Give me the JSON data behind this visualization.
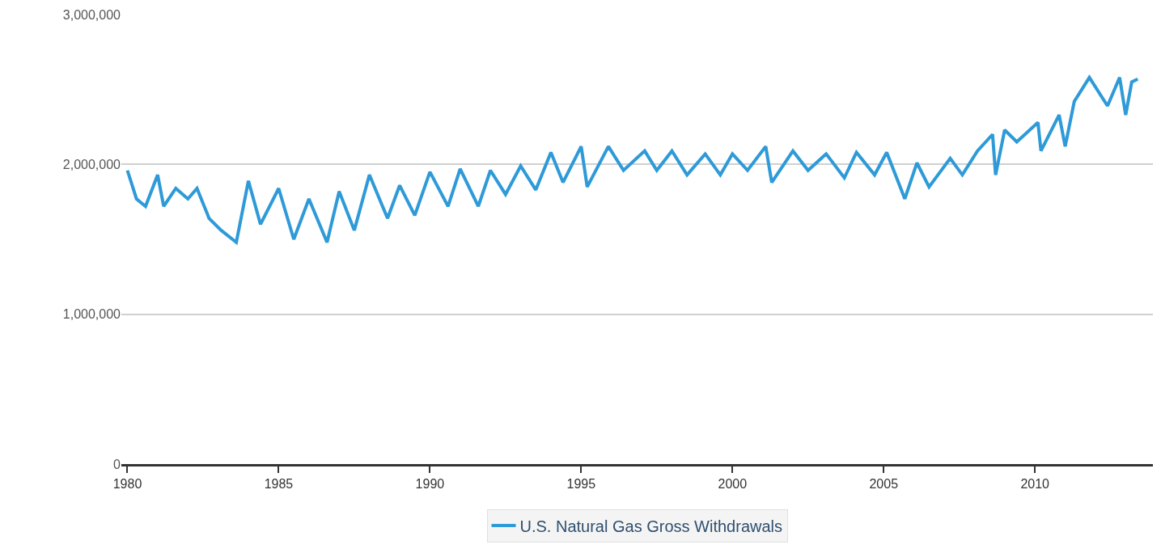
{
  "chart_data": {
    "type": "line",
    "xlim": [
      1979.8,
      2013.9
    ],
    "xticks": [
      1980,
      1985,
      1990,
      1995,
      2000,
      2005,
      2010
    ],
    "ylim": [
      0,
      3000000
    ],
    "yticks": [
      {
        "value": 0,
        "label": "0"
      },
      {
        "value": 1000000,
        "label": "1,000,000"
      },
      {
        "value": 2000000,
        "label": "2,000,000"
      },
      {
        "value": 3000000,
        "label": "3,000,000"
      }
    ],
    "grid": "y",
    "legend": "bottom",
    "marker": "none",
    "line_style": "solid",
    "series": [
      {
        "name": "U.S. Natural Gas Gross Withdrawals",
        "color": "#2e9ad8",
        "x": [
          1980.0,
          1980.3,
          1980.6,
          1981.0,
          1981.2,
          1981.6,
          1982.0,
          1982.3,
          1982.7,
          1983.1,
          1983.6,
          1984.0,
          1984.4,
          1985.0,
          1985.5,
          1986.0,
          1986.6,
          1987.0,
          1987.5,
          1988.0,
          1988.6,
          1989.0,
          1989.5,
          1990.0,
          1990.6,
          1991.0,
          1991.6,
          1992.0,
          1992.5,
          1993.0,
          1993.5,
          1994.0,
          1994.4,
          1995.0,
          1995.2,
          1995.9,
          1996.4,
          1997.1,
          1997.5,
          1998.0,
          1998.5,
          1999.1,
          1999.6,
          2000.0,
          2000.5,
          2001.1,
          2001.3,
          2002.0,
          2002.5,
          2003.1,
          2003.7,
          2004.1,
          2004.7,
          2005.1,
          2005.7,
          2006.1,
          2006.5,
          2007.2,
          2007.6,
          2008.1,
          2008.6,
          2008.7,
          2009.0,
          2009.4,
          2010.1,
          2010.2,
          2010.8,
          2011.0,
          2011.3,
          2011.8,
          2012.4,
          2012.8,
          2013.0,
          2013.2,
          2013.4
        ],
        "values": [
          1960000,
          1770000,
          1720000,
          1930000,
          1720000,
          1840000,
          1770000,
          1840000,
          1640000,
          1560000,
          1480000,
          1890000,
          1600000,
          1840000,
          1500000,
          1770000,
          1480000,
          1820000,
          1560000,
          1930000,
          1640000,
          1860000,
          1660000,
          1950000,
          1720000,
          1970000,
          1720000,
          1960000,
          1800000,
          1990000,
          1830000,
          2080000,
          1880000,
          2120000,
          1850000,
          2120000,
          1960000,
          2090000,
          1960000,
          2090000,
          1930000,
          2070000,
          1930000,
          2070000,
          1960000,
          2120000,
          1880000,
          2090000,
          1960000,
          2070000,
          1910000,
          2080000,
          1930000,
          2080000,
          1770000,
          2010000,
          1850000,
          2040000,
          1930000,
          2090000,
          2200000,
          1930000,
          2230000,
          2150000,
          2280000,
          2090000,
          2330000,
          2120000,
          2420000,
          2580000,
          2390000,
          2580000,
          2330000,
          2550000,
          2570000
        ]
      }
    ]
  }
}
